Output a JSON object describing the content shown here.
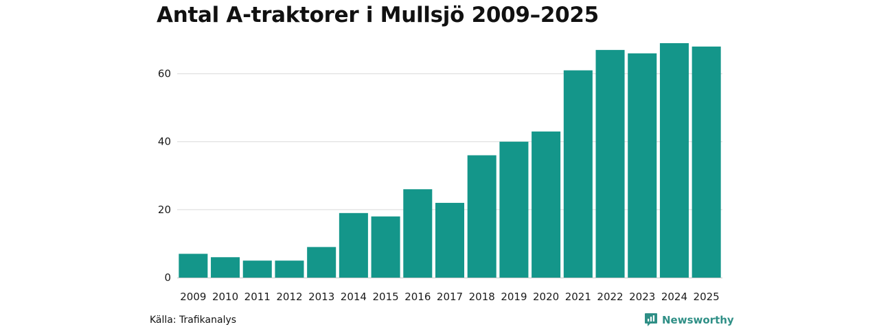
{
  "title": "Antal A-traktorer i Mullsjö 2009–2025",
  "source": "Källa: Trafikanalys",
  "brand": {
    "name": "Newsworthy",
    "icon": "newsworthy-logo-icon",
    "color": "#2f8f86"
  },
  "colors": {
    "bar": "#14968a",
    "grid": "#d9d9d9",
    "axis": "#c8c8c8"
  },
  "chart_data": {
    "type": "bar",
    "title": "Antal A-traktorer i Mullsjö 2009–2025",
    "xlabel": "",
    "ylabel": "",
    "categories": [
      "2009",
      "2010",
      "2011",
      "2012",
      "2013",
      "2014",
      "2015",
      "2016",
      "2017",
      "2018",
      "2019",
      "2020",
      "2021",
      "2022",
      "2023",
      "2024",
      "2025"
    ],
    "values": [
      7,
      6,
      5,
      5,
      9,
      19,
      18,
      26,
      22,
      36,
      40,
      43,
      61,
      67,
      66,
      69,
      68
    ],
    "yticks": [
      0,
      20,
      40,
      60
    ],
    "ylim": [
      0,
      70
    ],
    "grid": true,
    "legend": "none"
  }
}
